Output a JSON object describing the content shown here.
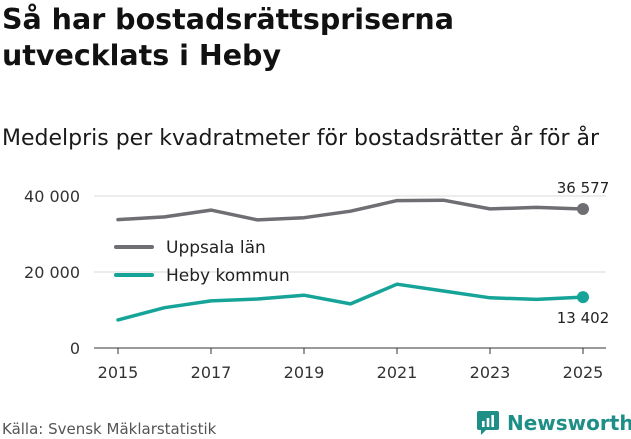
{
  "header": {
    "title": "Så har bostadsrättspriserna utvecklats i Heby",
    "subtitle": "Medelpris per kvadratmeter för bostadsrätter år för år"
  },
  "footer": {
    "source": "Källa: Svensk Mäklarstatistik",
    "brand": "Newsworthy",
    "brand_icon": "newsworthy-logo-icon"
  },
  "colors": {
    "uppsala": "#6e6e73",
    "heby": "#16a499",
    "grid": "#d9d9d9",
    "brand": "#1d8f87"
  },
  "chart_data": {
    "type": "line",
    "title": "Så har bostadsrättspriserna utvecklats i Heby",
    "subtitle": "Medelpris per kvadratmeter för bostadsrätter år för år",
    "xlabel": "",
    "ylabel": "",
    "x": [
      2015,
      2016,
      2017,
      2018,
      2019,
      2020,
      2021,
      2022,
      2023,
      2024,
      2025
    ],
    "xticks": [
      2015,
      2017,
      2019,
      2021,
      2023,
      2025
    ],
    "xtick_labels": [
      "2015",
      "2017",
      "2019",
      "2021",
      "2023",
      "2025"
    ],
    "yticks": [
      0,
      20000,
      40000
    ],
    "ytick_labels": [
      "0",
      "20 000",
      "40 000"
    ],
    "ylim": [
      0,
      42000
    ],
    "grid": true,
    "legend_position": "middle-left",
    "series": [
      {
        "name": "Uppsala län",
        "color": "#6e6e73",
        "values": [
          33800,
          34500,
          36300,
          33700,
          34300,
          36000,
          38800,
          38900,
          36600,
          37000,
          36577
        ],
        "end_label": "36 577",
        "end_label_position": "above"
      },
      {
        "name": "Heby kommun",
        "color": "#16a499",
        "values": [
          7400,
          10600,
          12400,
          12900,
          13900,
          11600,
          16800,
          15000,
          13200,
          12800,
          13402
        ],
        "end_label": "13 402",
        "end_label_position": "below"
      }
    ]
  }
}
